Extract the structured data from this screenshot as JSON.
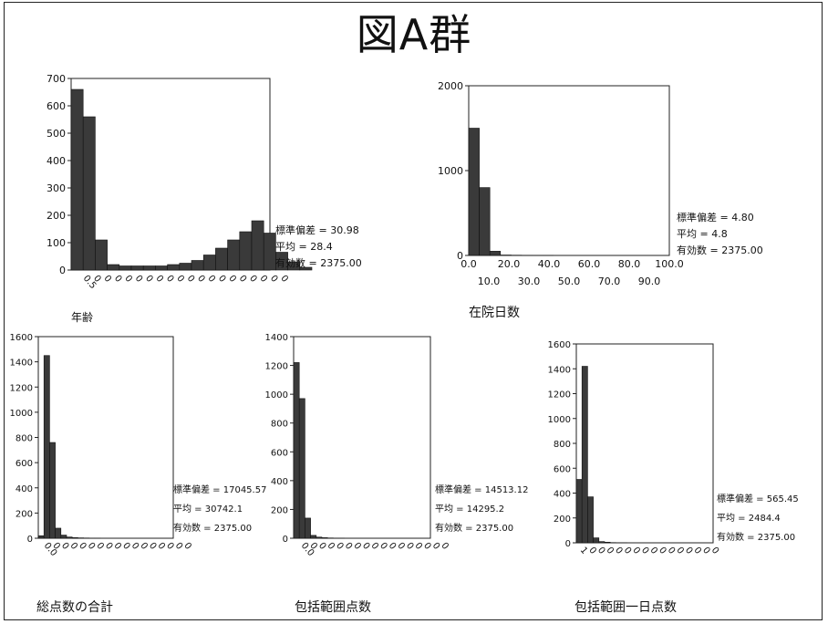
{
  "page": {
    "title": "図A群"
  },
  "chart_data": [
    {
      "type": "bar",
      "title": "",
      "xlabel": "年齢",
      "ylabel": "",
      "ylim": [
        0,
        700
      ],
      "y_ticks": [
        "0",
        "100",
        "200",
        "300",
        "400",
        "500",
        "600",
        "700"
      ],
      "x_ticks": [
        "0.5",
        "0",
        "0",
        "0",
        "0",
        "0",
        "0",
        "0",
        "0",
        "0",
        "0",
        "0",
        "0",
        "0",
        "0",
        "0",
        "0",
        "0",
        "0",
        "0"
      ],
      "values": [
        660,
        560,
        110,
        20,
        15,
        15,
        15,
        15,
        20,
        25,
        35,
        55,
        80,
        110,
        140,
        180,
        135,
        65,
        30,
        10
      ],
      "stats": {
        "sd": "標準偏差 = 30.98",
        "mean": "平均 = 28.4",
        "n": "有効数 = 2375.00"
      },
      "grid": false
    },
    {
      "type": "bar",
      "title": "",
      "xlabel": "在院日数",
      "ylabel": "",
      "ylim": [
        0,
        2000
      ],
      "y_ticks": [
        "0",
        "1000",
        "2000"
      ],
      "x_ticks_upper": [
        "0.0",
        "20.0",
        "40.0",
        "60.0",
        "80.0",
        "100.0"
      ],
      "x_ticks_lower": [
        "10.0",
        "30.0",
        "50.0",
        "70.0",
        "90.0"
      ],
      "values": [
        1500,
        800,
        50,
        5,
        3,
        2,
        1,
        1,
        0,
        0,
        0,
        0,
        0,
        0,
        0,
        0
      ],
      "stats": {
        "sd": "標準偏差 = 4.80",
        "mean": "平均 = 4.8",
        "n": "有効数 = 2375.00"
      },
      "grid": false
    },
    {
      "type": "bar",
      "title": "",
      "xlabel": "総点数の合計",
      "ylabel": "",
      "ylim": [
        0,
        1600
      ],
      "y_ticks": [
        "0",
        "200",
        "400",
        "600",
        "800",
        "1000",
        "1200",
        "1400",
        "1600"
      ],
      "x_ticks": [
        "0.0",
        "0",
        "0",
        "0",
        "0",
        "0",
        "0",
        "0",
        "0",
        "0",
        "0",
        "0",
        "0",
        "0",
        "0",
        "0",
        "0"
      ],
      "values": [
        20,
        1450,
        760,
        80,
        25,
        10,
        5,
        3,
        2,
        1,
        1,
        0,
        0,
        0,
        0,
        0,
        0,
        0,
        0,
        0,
        0,
        0,
        0,
        0
      ],
      "stats": {
        "sd": "標準偏差 = 17045.57",
        "mean": "平均 = 30742.1",
        "n": "有効数 = 2375.00"
      },
      "grid": false
    },
    {
      "type": "bar",
      "title": "",
      "xlabel": "包括範囲点数",
      "ylabel": "",
      "ylim": [
        0,
        1400
      ],
      "y_ticks": [
        "0",
        "200",
        "400",
        "600",
        "800",
        "1000",
        "1200",
        "1400"
      ],
      "x_ticks": [
        "0.0",
        "0",
        "0",
        "0",
        "0",
        "0",
        "0",
        "0",
        "0",
        "0",
        "0",
        "0",
        "0",
        "0",
        "0",
        "0",
        "0"
      ],
      "values": [
        1220,
        970,
        140,
        20,
        8,
        4,
        2,
        1,
        1,
        0,
        0,
        0,
        0,
        0,
        0,
        0,
        0,
        0,
        0,
        0,
        0,
        0,
        0,
        0
      ],
      "stats": {
        "sd": "標準偏差 = 14513.12",
        "mean": "平均 = 14295.2",
        "n": "有効数 = 2375.00"
      },
      "grid": false
    },
    {
      "type": "bar",
      "title": "",
      "xlabel": "包括範囲一日点数",
      "ylabel": "",
      "ylim": [
        0,
        1600
      ],
      "y_ticks": [
        "0",
        "200",
        "400",
        "600",
        "800",
        "1000",
        "1200",
        "1400",
        "1600"
      ],
      "x_ticks": [
        "1",
        "0",
        "0",
        "0",
        "0",
        "0",
        "0",
        "0",
        "0",
        "0",
        "0",
        "0",
        "0",
        "0",
        "0",
        "0"
      ],
      "values": [
        510,
        1420,
        370,
        40,
        10,
        5,
        2,
        1,
        1,
        0,
        0,
        0,
        0,
        0,
        0,
        0,
        0,
        0,
        0,
        0,
        0,
        0,
        0,
        0
      ],
      "stats": {
        "sd": "標準偏差 = 565.45",
        "mean": "平均 = 2484.4",
        "n": "有効数 = 2375.00"
      },
      "grid": false
    }
  ]
}
